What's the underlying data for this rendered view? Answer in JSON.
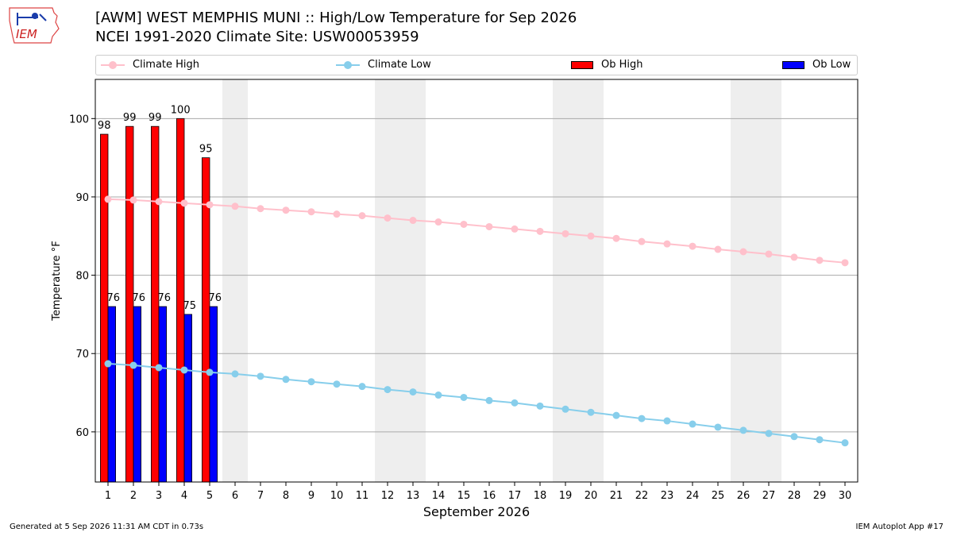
{
  "logo": {
    "text": "IEM",
    "icon": "iowa-state-outline-weather-station-icon"
  },
  "header": {
    "title_line1": "[AWM] WEST MEMPHIS MUNI :: High/Low Temperature for Sep 2026",
    "title_line2": "NCEI 1991-2020 Climate Site: USW00053959"
  },
  "legend": {
    "climate_high": "Climate High",
    "climate_low": "Climate Low",
    "ob_high": "Ob High",
    "ob_low": "Ob Low"
  },
  "footer": {
    "left": "Generated at 5 Sep 2026 11:31 AM CDT in 0.73s",
    "right": "IEM Autoplot App #17"
  },
  "colors": {
    "climate_high": "#ffc0cb",
    "climate_low": "#87ceeb",
    "ob_high": "#ff0000",
    "ob_low": "#0000ff",
    "weekend_band": "#eeeeee",
    "grid": "#aaaaaa"
  },
  "chart_data": {
    "type": "bar",
    "xlabel": "September 2026",
    "ylabel": "Temperature °F",
    "xlim": [
      0.5,
      30.5
    ],
    "ylim": [
      53.6,
      105
    ],
    "yticks": [
      60,
      70,
      80,
      90,
      100
    ],
    "grid": "horizontal",
    "legend_placement": "top",
    "days": [
      1,
      2,
      3,
      4,
      5,
      6,
      7,
      8,
      9,
      10,
      11,
      12,
      13,
      14,
      15,
      16,
      17,
      18,
      19,
      20,
      21,
      22,
      23,
      24,
      25,
      26,
      27,
      28,
      29,
      30
    ],
    "weekend_bands": [
      [
        5.5,
        6.5
      ],
      [
        11.5,
        13.5
      ],
      [
        18.5,
        20.5
      ],
      [
        25.5,
        27.5
      ]
    ],
    "ob_high": [
      98,
      99,
      99,
      100,
      95
    ],
    "ob_low": [
      76,
      76,
      76,
      75,
      76
    ],
    "climate_high": [
      89.7,
      89.6,
      89.4,
      89.2,
      89.0,
      88.8,
      88.5,
      88.3,
      88.1,
      87.8,
      87.6,
      87.3,
      87.0,
      86.8,
      86.5,
      86.2,
      85.9,
      85.6,
      85.3,
      85.0,
      84.7,
      84.3,
      84.0,
      83.7,
      83.3,
      83.0,
      82.7,
      82.3,
      81.9,
      81.6
    ],
    "climate_low": [
      68.7,
      68.5,
      68.2,
      67.9,
      67.6,
      67.4,
      67.1,
      66.7,
      66.4,
      66.1,
      65.8,
      65.4,
      65.1,
      64.7,
      64.4,
      64.0,
      63.7,
      63.3,
      62.9,
      62.5,
      62.1,
      61.7,
      61.4,
      61.0,
      60.6,
      60.2,
      59.8,
      59.4,
      59.0,
      58.6
    ]
  }
}
